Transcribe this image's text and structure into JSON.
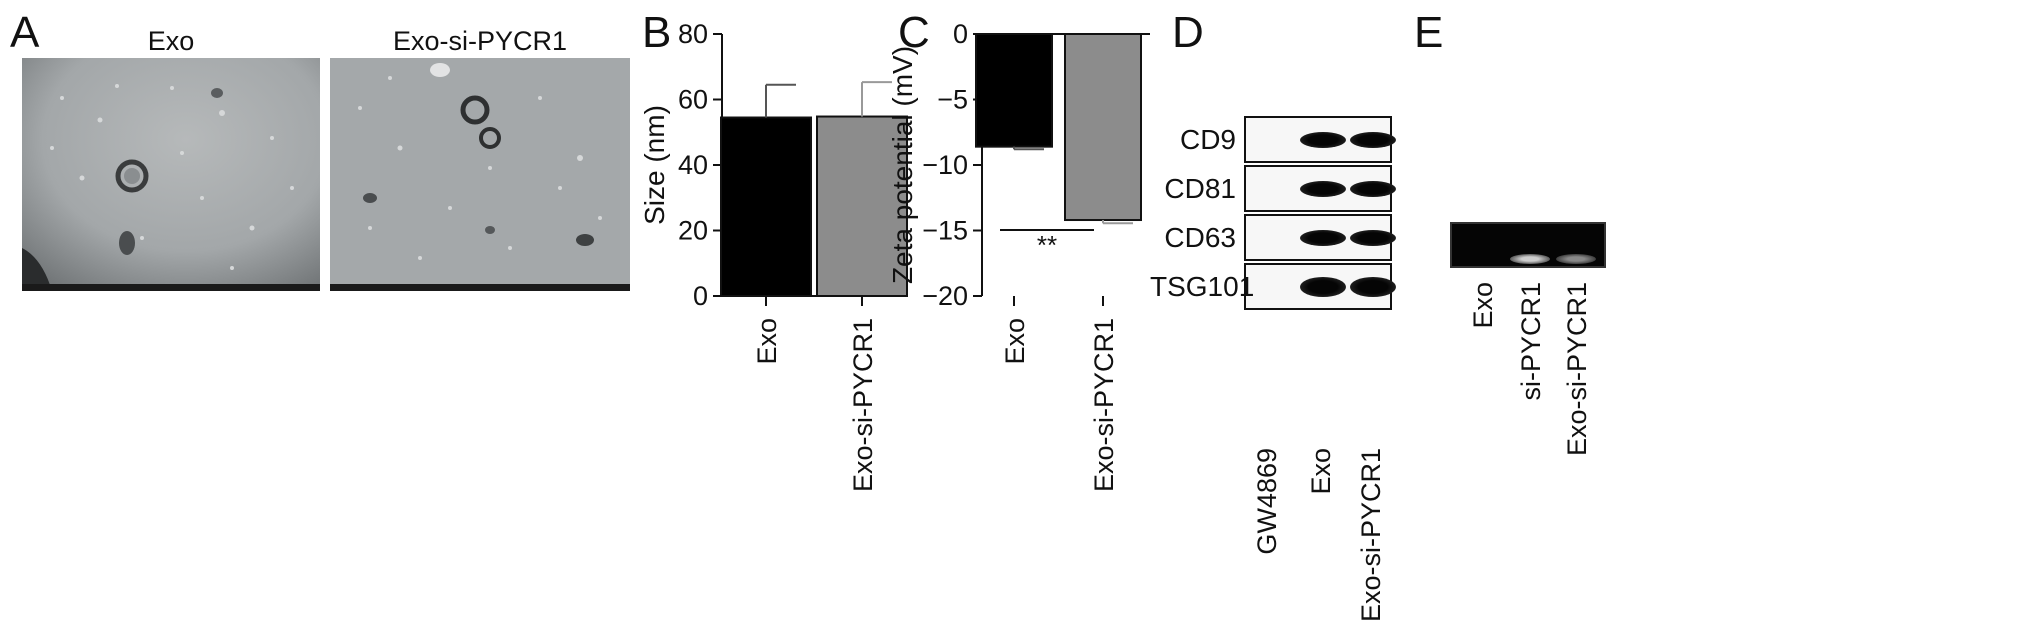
{
  "panels": {
    "a": {
      "letter": "A",
      "images": [
        {
          "caption": "Exo"
        },
        {
          "caption": "Exo-si-PYCR1"
        }
      ]
    },
    "b": {
      "letter": "B"
    },
    "c": {
      "letter": "C",
      "significance": "**"
    },
    "d": {
      "letter": "D",
      "rows": [
        "CD9",
        "CD81",
        "CD63",
        "TSG101"
      ],
      "lanes": [
        "GW4869",
        "Exo",
        "Exo-si-PYCR1"
      ],
      "band_presence": [
        [
          0,
          1,
          1
        ],
        [
          0,
          1,
          1
        ],
        [
          0,
          1,
          1
        ],
        [
          0,
          1,
          1
        ]
      ]
    },
    "e": {
      "letter": "E",
      "lanes": [
        "Exo",
        "si-PYCR1",
        "Exo-si-PYCR1"
      ],
      "band_intensity": [
        0,
        0.85,
        0.45
      ]
    }
  },
  "chart_data": [
    {
      "type": "bar",
      "panel": "B",
      "categories": [
        "Exo",
        "Exo-si-PYCR1"
      ],
      "values": [
        54.5,
        54.8
      ],
      "errors": [
        10,
        10.5
      ],
      "colors": [
        "#000000",
        "#8c8c8c"
      ],
      "ylabel": "Size (nm)",
      "ylim": [
        0,
        80
      ],
      "yticks": [
        0,
        20,
        40,
        60,
        80
      ]
    },
    {
      "type": "bar",
      "panel": "C",
      "categories": [
        "Exo",
        "Exo-si-PYCR1"
      ],
      "values": [
        -8.6,
        -14.2
      ],
      "errors": [
        0.2,
        0.25
      ],
      "colors": [
        "#000000",
        "#8c8c8c"
      ],
      "ylabel": "Zeta potential (mV)",
      "ylim": [
        -20,
        0
      ],
      "yticks": [
        0,
        -5,
        -10,
        -15,
        -20
      ]
    }
  ]
}
